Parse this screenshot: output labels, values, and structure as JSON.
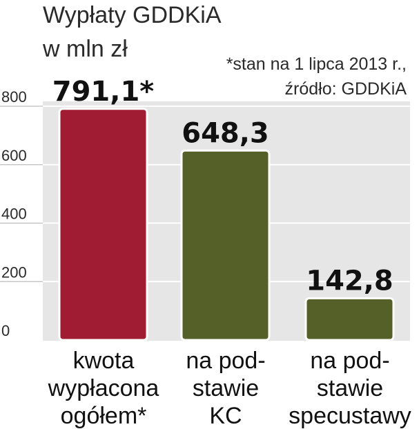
{
  "chart_data": {
    "type": "bar",
    "title": "Wypłaty GDDKiA",
    "subtitle": "w mln zł",
    "note_lines": [
      "*stan na 1 lipca 2013 r.,",
      "źródło: GDDKiA"
    ],
    "categories": [
      [
        "kwota",
        "wypłacona",
        "ogółem*"
      ],
      [
        "na pod-",
        "stawie",
        "KC"
      ],
      [
        "na pod-",
        "stawie",
        "specustawy"
      ]
    ],
    "values": [
      791.1,
      648.3,
      142.8
    ],
    "value_labels": [
      "791,1*",
      "648,3",
      "142,8"
    ],
    "bar_colors": [
      "#a01c32",
      "#555f28",
      "#555f28"
    ],
    "yticks": [
      "0",
      "200",
      "400",
      "600",
      "800"
    ],
    "ytick_values": [
      0,
      200,
      400,
      600,
      800
    ],
    "ylim": [
      0,
      800
    ],
    "grid": true,
    "plot_background": "#e6e6e6",
    "grid_color": "#ffffff"
  }
}
